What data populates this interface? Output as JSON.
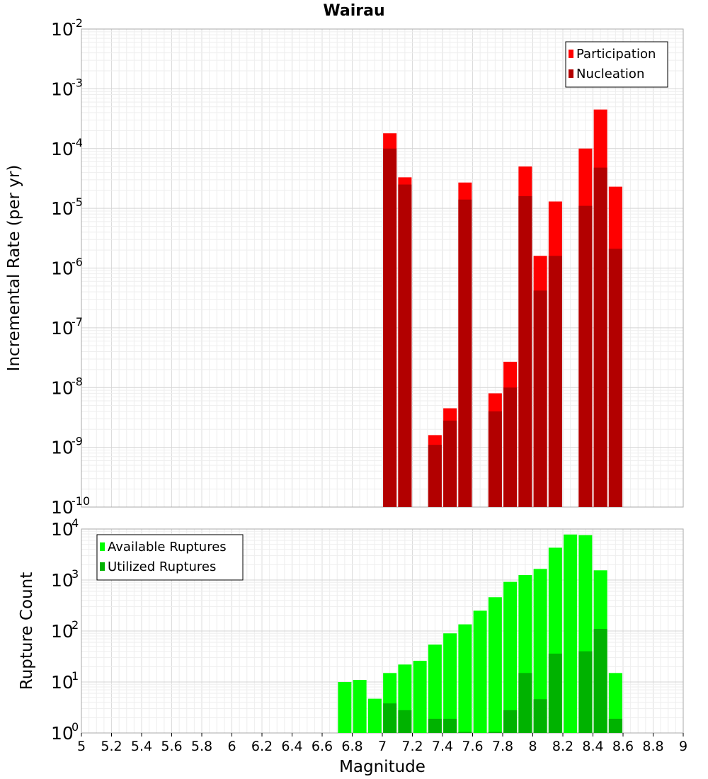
{
  "chart_data": [
    {
      "type": "bar",
      "title": "Wairau",
      "ylabel": "Incremental Rate (per yr)",
      "yscale": "log",
      "ylim_exponents": [
        -10,
        -2
      ],
      "xlim": [
        5,
        9
      ],
      "legend_position": "top-right",
      "x": [
        7.05,
        7.15,
        7.35,
        7.45,
        7.55,
        7.75,
        7.85,
        7.95,
        8.05,
        8.15,
        8.35,
        8.45,
        8.55
      ],
      "series": [
        {
          "name": "Participation",
          "color": "#ff0000",
          "values": [
            0.00018,
            3.3e-05,
            1.6e-09,
            4.5e-09,
            2.7e-05,
            8e-09,
            2.7e-08,
            5e-05,
            1.6e-06,
            1.3e-05,
            0.0001,
            0.00045,
            2.3e-05
          ]
        },
        {
          "name": "Nucleation",
          "color": "#b20000",
          "values": [
            0.0001,
            2.5e-05,
            1.1e-09,
            2.8e-09,
            1.4e-05,
            4e-09,
            1e-08,
            1.6e-05,
            4.2e-07,
            1.6e-06,
            1.1e-05,
            4.8e-05,
            2.1e-06
          ]
        }
      ]
    },
    {
      "type": "bar",
      "xlabel": "Magnitude",
      "ylabel": "Rupture Count",
      "yscale": "log",
      "ylim_exponents": [
        0,
        4
      ],
      "xlim": [
        5,
        9
      ],
      "legend_position": "top-left",
      "x_ticks": [
        "5",
        "5.2",
        "5.4",
        "5.6",
        "5.8",
        "6",
        "6.2",
        "6.4",
        "6.6",
        "6.8",
        "7",
        "7.2",
        "7.4",
        "7.6",
        "7.8",
        "8",
        "8.2",
        "8.4",
        "8.6",
        "8.8",
        "9"
      ],
      "x": [
        6.75,
        6.85,
        6.95,
        7.05,
        7.15,
        7.25,
        7.35,
        7.45,
        7.55,
        7.65,
        7.75,
        7.85,
        7.95,
        8.05,
        8.15,
        8.25,
        8.35,
        8.45,
        8.55
      ],
      "series": [
        {
          "name": "Available Ruptures",
          "color": "#00ff00",
          "values": [
            10,
            11,
            4.7,
            15,
            22,
            26,
            54,
            90,
            135,
            250,
            460,
            920,
            1250,
            1650,
            4300,
            7800,
            7600,
            1550,
            15
          ]
        },
        {
          "name": "Utilized Ruptures",
          "color": "#00b200",
          "values": [
            null,
            null,
            null,
            3.8,
            2.8,
            null,
            1.9,
            1.9,
            1.05,
            null,
            1.05,
            2.8,
            15,
            4.6,
            36,
            null,
            40,
            110,
            1.9
          ]
        }
      ]
    }
  ]
}
